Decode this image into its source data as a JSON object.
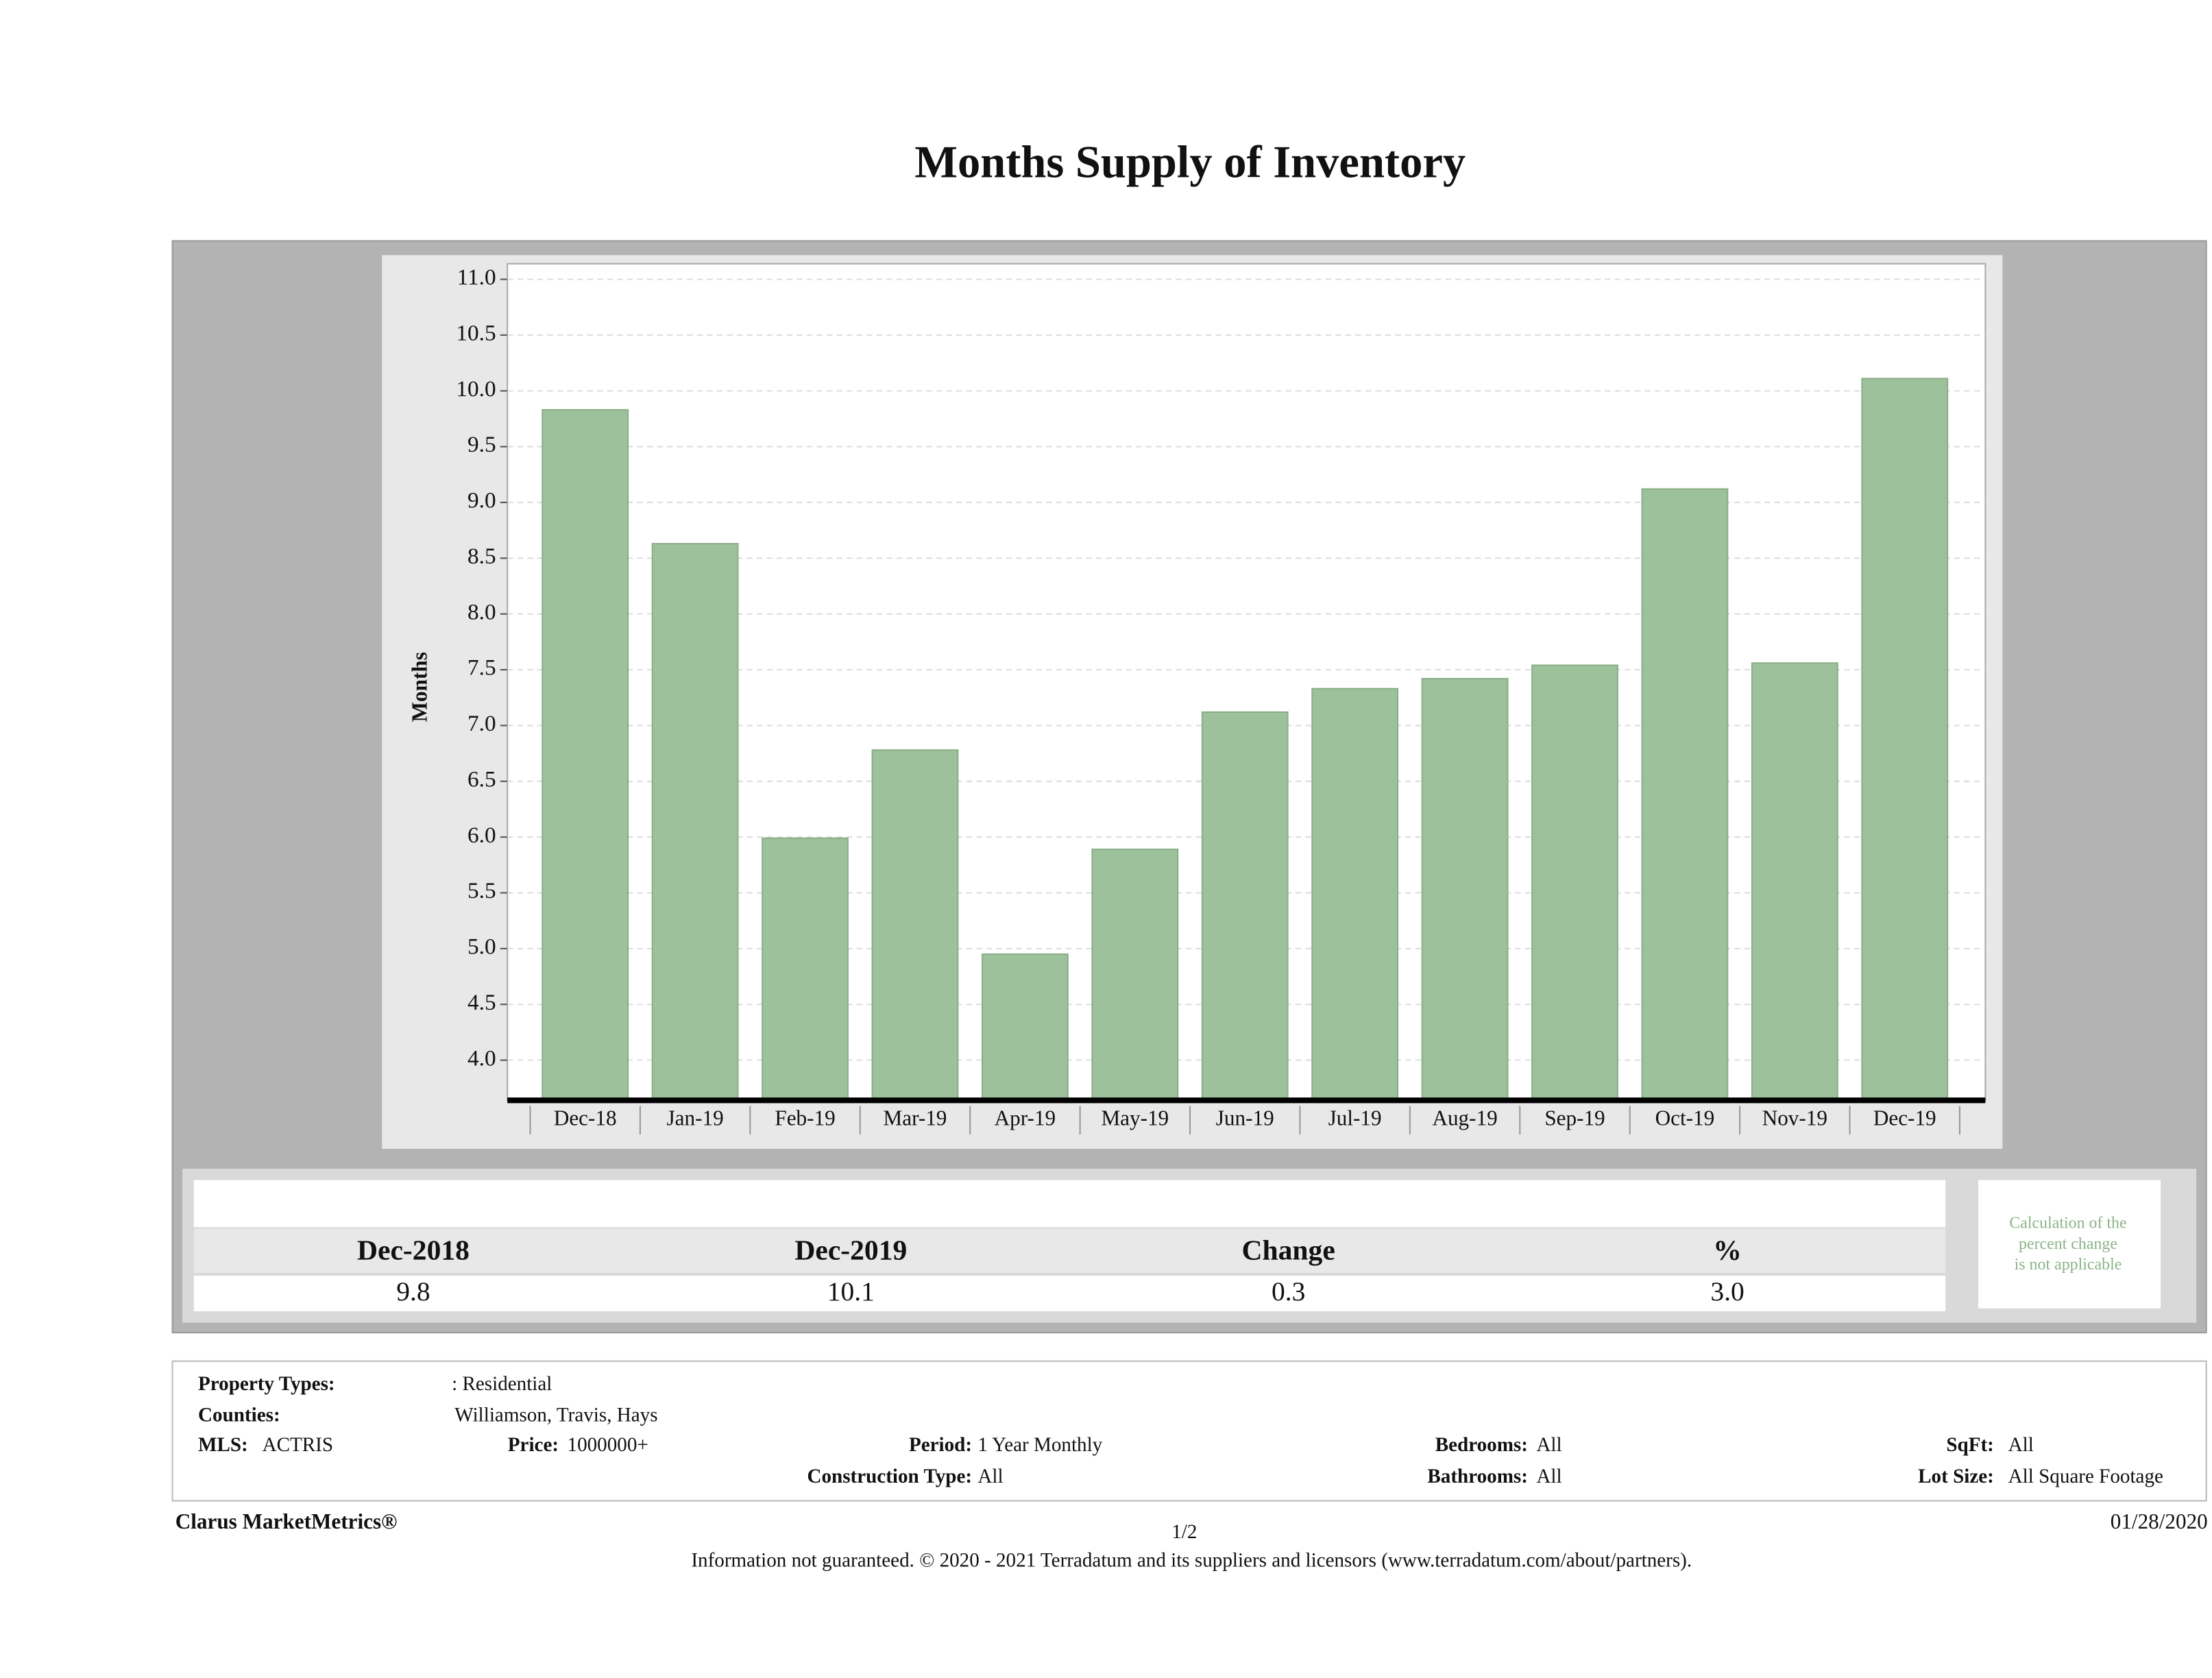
{
  "chart_data": {
    "type": "bar",
    "title": "Months Supply of Inventory",
    "y_label": "Months",
    "categories": [
      "Dec-18",
      "Jan-19",
      "Feb-19",
      "Mar-19",
      "Apr-19",
      "May-19",
      "Jun-19",
      "Jul-19",
      "Aug-19",
      "Sep-19",
      "Oct-19",
      "Nov-19",
      "Dec-19"
    ],
    "values": [
      9.83,
      8.63,
      5.99,
      6.78,
      4.95,
      5.89,
      7.12,
      7.33,
      7.42,
      7.54,
      9.12,
      7.56,
      10.11
    ],
    "color": "#9dc19a",
    "grid": true,
    "ylim": [
      3.64,
      11.14
    ],
    "yticks": [
      {
        "value": 4,
        "label": "4.0"
      },
      {
        "value": 4.5,
        "label": "4.5"
      },
      {
        "value": 5,
        "label": "5.0"
      },
      {
        "value": 5.5,
        "label": "5.5"
      },
      {
        "value": 6,
        "label": "6.0"
      },
      {
        "value": 6.5,
        "label": "6.5"
      },
      {
        "value": 7,
        "label": "7.0"
      },
      {
        "value": 7.5,
        "label": "7.5"
      },
      {
        "value": 8,
        "label": "8.0"
      },
      {
        "value": 8.5,
        "label": "8.5"
      },
      {
        "value": 9,
        "label": "9.0"
      },
      {
        "value": 9.5,
        "label": "9.5"
      },
      {
        "value": 10,
        "label": "10.0"
      },
      {
        "value": 10.5,
        "label": "10.5"
      },
      {
        "value": 11,
        "label": "11.0"
      }
    ]
  },
  "summary": {
    "headers": [
      "Dec-2018",
      "Dec-2019",
      "Change",
      "%"
    ],
    "values": [
      "9.8",
      "10.1",
      "0.3",
      "3.0"
    ],
    "note": [
      "Calculation of the",
      "percent change",
      "is not applicable"
    ]
  },
  "filters": [
    {
      "label": "Property Types:",
      "value": ": Residential"
    },
    {
      "label": "Counties:",
      "value": "Williamson, Travis, Hays"
    },
    {
      "label": "MLS:",
      "value": "ACTRIS"
    },
    {
      "label": "Price:",
      "value": "1000000+"
    },
    {
      "label": "Period:",
      "value": "1 Year Monthly"
    },
    {
      "label": "Bedrooms:",
      "value": "All"
    },
    {
      "label": "SqFt:",
      "value": "All"
    },
    {
      "label": "Construction Type:",
      "value": "All"
    },
    {
      "label": "Bathrooms:",
      "value": "All"
    },
    {
      "label": "Lot Size:",
      "value": "All Square Footage"
    }
  ],
  "footer": {
    "brand": "Clarus MarketMetrics®",
    "page": "1/2",
    "date": "01/28/2020",
    "disclaimer": "Information not guaranteed. © 2020 - 2021 Terradatum and its suppliers and licensors (www.terradatum.com/about/partners)."
  }
}
